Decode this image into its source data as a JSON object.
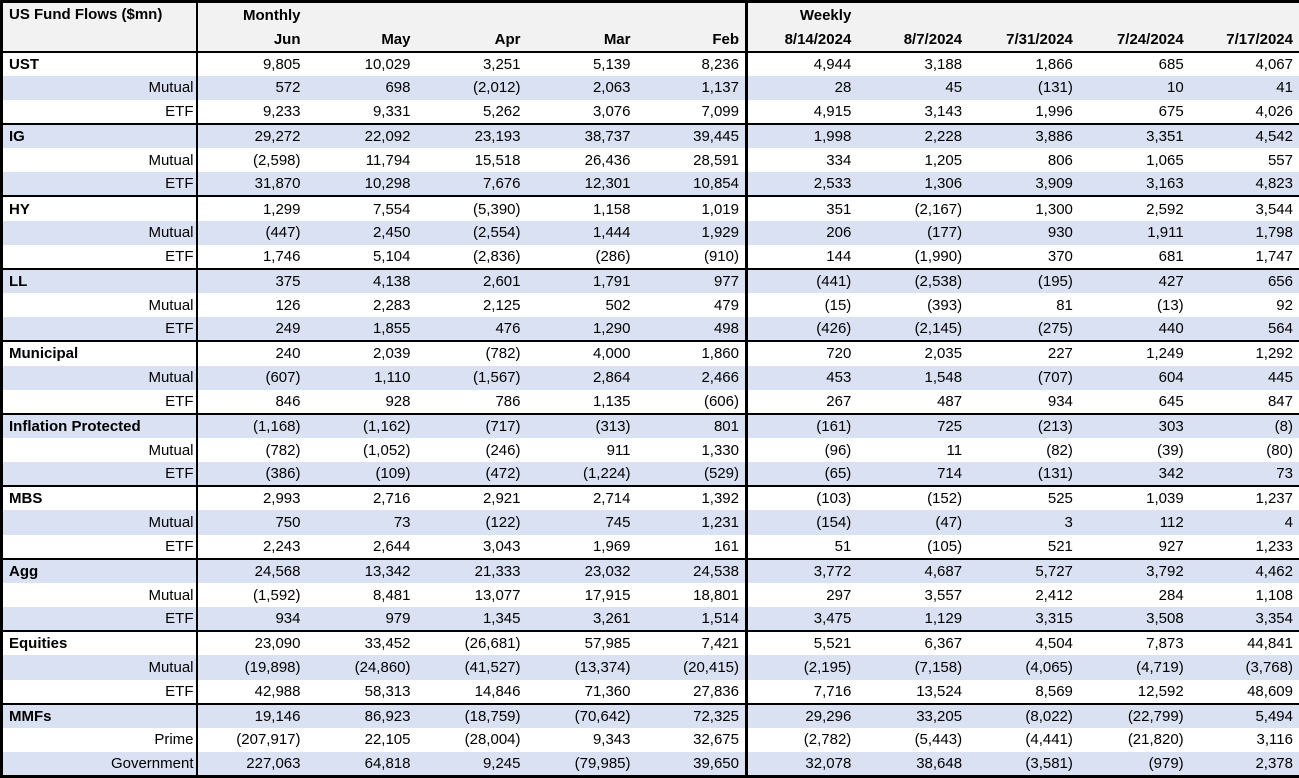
{
  "colors": {
    "stripe": "#d9e1f2",
    "header_bg": "#f2f2f2",
    "border": "#000000",
    "text": "#000000",
    "row_bg": "#ffffff"
  },
  "chart_data": {
    "type": "table",
    "title": "US Fund Flows ($mn)",
    "column_groups": [
      {
        "label": "Monthly",
        "columns": [
          "Jun",
          "May",
          "Apr",
          "Mar",
          "Feb"
        ]
      },
      {
        "label": "Weekly",
        "columns": [
          "8/14/2024",
          "8/7/2024",
          "7/31/2024",
          "7/24/2024",
          "7/17/2024"
        ]
      }
    ],
    "row_groups": [
      {
        "name": "UST",
        "rows": [
          {
            "label": "UST",
            "monthly": [
              "9,805",
              "10,029",
              "3,251",
              "5,139",
              "8,236"
            ],
            "weekly": [
              "4,944",
              "3,188",
              "1,866",
              "685",
              "4,067"
            ]
          },
          {
            "label": "Mutual",
            "monthly": [
              "572",
              "698",
              "(2,012)",
              "2,063",
              "1,137"
            ],
            "weekly": [
              "28",
              "45",
              "(131)",
              "10",
              "41"
            ]
          },
          {
            "label": "ETF",
            "monthly": [
              "9,233",
              "9,331",
              "5,262",
              "3,076",
              "7,099"
            ],
            "weekly": [
              "4,915",
              "3,143",
              "1,996",
              "675",
              "4,026"
            ]
          }
        ]
      },
      {
        "name": "IG",
        "rows": [
          {
            "label": "IG",
            "monthly": [
              "29,272",
              "22,092",
              "23,193",
              "38,737",
              "39,445"
            ],
            "weekly": [
              "1,998",
              "2,228",
              "3,886",
              "3,351",
              "4,542"
            ]
          },
          {
            "label": "Mutual",
            "monthly": [
              "(2,598)",
              "11,794",
              "15,518",
              "26,436",
              "28,591"
            ],
            "weekly": [
              "334",
              "1,205",
              "806",
              "1,065",
              "557"
            ]
          },
          {
            "label": "ETF",
            "monthly": [
              "31,870",
              "10,298",
              "7,676",
              "12,301",
              "10,854"
            ],
            "weekly": [
              "2,533",
              "1,306",
              "3,909",
              "3,163",
              "4,823"
            ]
          }
        ]
      },
      {
        "name": "HY",
        "rows": [
          {
            "label": "HY",
            "monthly": [
              "1,299",
              "7,554",
              "(5,390)",
              "1,158",
              "1,019"
            ],
            "weekly": [
              "351",
              "(2,167)",
              "1,300",
              "2,592",
              "3,544"
            ]
          },
          {
            "label": "Mutual",
            "monthly": [
              "(447)",
              "2,450",
              "(2,554)",
              "1,444",
              "1,929"
            ],
            "weekly": [
              "206",
              "(177)",
              "930",
              "1,911",
              "1,798"
            ]
          },
          {
            "label": "ETF",
            "monthly": [
              "1,746",
              "5,104",
              "(2,836)",
              "(286)",
              "(910)"
            ],
            "weekly": [
              "144",
              "(1,990)",
              "370",
              "681",
              "1,747"
            ]
          }
        ]
      },
      {
        "name": "LL",
        "rows": [
          {
            "label": "LL",
            "monthly": [
              "375",
              "4,138",
              "2,601",
              "1,791",
              "977"
            ],
            "weekly": [
              "(441)",
              "(2,538)",
              "(195)",
              "427",
              "656"
            ]
          },
          {
            "label": "Mutual",
            "monthly": [
              "126",
              "2,283",
              "2,125",
              "502",
              "479"
            ],
            "weekly": [
              "(15)",
              "(393)",
              "81",
              "(13)",
              "92"
            ]
          },
          {
            "label": "ETF",
            "monthly": [
              "249",
              "1,855",
              "476",
              "1,290",
              "498"
            ],
            "weekly": [
              "(426)",
              "(2,145)",
              "(275)",
              "440",
              "564"
            ]
          }
        ]
      },
      {
        "name": "Municipal",
        "rows": [
          {
            "label": "Municipal",
            "monthly": [
              "240",
              "2,039",
              "(782)",
              "4,000",
              "1,860"
            ],
            "weekly": [
              "720",
              "2,035",
              "227",
              "1,249",
              "1,292"
            ]
          },
          {
            "label": "Mutual",
            "monthly": [
              "(607)",
              "1,110",
              "(1,567)",
              "2,864",
              "2,466"
            ],
            "weekly": [
              "453",
              "1,548",
              "(707)",
              "604",
              "445"
            ]
          },
          {
            "label": "ETF",
            "monthly": [
              "846",
              "928",
              "786",
              "1,135",
              "(606)"
            ],
            "weekly": [
              "267",
              "487",
              "934",
              "645",
              "847"
            ]
          }
        ]
      },
      {
        "name": "Inflation Protected",
        "rows": [
          {
            "label": "Inflation Protected",
            "monthly": [
              "(1,168)",
              "(1,162)",
              "(717)",
              "(313)",
              "801"
            ],
            "weekly": [
              "(161)",
              "725",
              "(213)",
              "303",
              "(8)"
            ]
          },
          {
            "label": "Mutual",
            "monthly": [
              "(782)",
              "(1,052)",
              "(246)",
              "911",
              "1,330"
            ],
            "weekly": [
              "(96)",
              "11",
              "(82)",
              "(39)",
              "(80)"
            ]
          },
          {
            "label": "ETF",
            "monthly": [
              "(386)",
              "(109)",
              "(472)",
              "(1,224)",
              "(529)"
            ],
            "weekly": [
              "(65)",
              "714",
              "(131)",
              "342",
              "73"
            ]
          }
        ]
      },
      {
        "name": "MBS",
        "rows": [
          {
            "label": "MBS",
            "monthly": [
              "2,993",
              "2,716",
              "2,921",
              "2,714",
              "1,392"
            ],
            "weekly": [
              "(103)",
              "(152)",
              "525",
              "1,039",
              "1,237"
            ]
          },
          {
            "label": "Mutual",
            "monthly": [
              "750",
              "73",
              "(122)",
              "745",
              "1,231"
            ],
            "weekly": [
              "(154)",
              "(47)",
              "3",
              "112",
              "4"
            ]
          },
          {
            "label": "ETF",
            "monthly": [
              "2,243",
              "2,644",
              "3,043",
              "1,969",
              "161"
            ],
            "weekly": [
              "51",
              "(105)",
              "521",
              "927",
              "1,233"
            ]
          }
        ]
      },
      {
        "name": "Agg",
        "rows": [
          {
            "label": "Agg",
            "monthly": [
              "24,568",
              "13,342",
              "21,333",
              "23,032",
              "24,538"
            ],
            "weekly": [
              "3,772",
              "4,687",
              "5,727",
              "3,792",
              "4,462"
            ]
          },
          {
            "label": "Mutual",
            "monthly": [
              "(1,592)",
              "8,481",
              "13,077",
              "17,915",
              "18,801"
            ],
            "weekly": [
              "297",
              "3,557",
              "2,412",
              "284",
              "1,108"
            ]
          },
          {
            "label": "ETF",
            "monthly": [
              "934",
              "979",
              "1,345",
              "3,261",
              "1,514"
            ],
            "weekly": [
              "3,475",
              "1,129",
              "3,315",
              "3,508",
              "3,354"
            ]
          }
        ]
      },
      {
        "name": "Equities",
        "rows": [
          {
            "label": "Equities",
            "monthly": [
              "23,090",
              "33,452",
              "(26,681)",
              "57,985",
              "7,421"
            ],
            "weekly": [
              "5,521",
              "6,367",
              "4,504",
              "7,873",
              "44,841"
            ]
          },
          {
            "label": "Mutual",
            "monthly": [
              "(19,898)",
              "(24,860)",
              "(41,527)",
              "(13,374)",
              "(20,415)"
            ],
            "weekly": [
              "(2,195)",
              "(7,158)",
              "(4,065)",
              "(4,719)",
              "(3,768)"
            ]
          },
          {
            "label": "ETF",
            "monthly": [
              "42,988",
              "58,313",
              "14,846",
              "71,360",
              "27,836"
            ],
            "weekly": [
              "7,716",
              "13,524",
              "8,569",
              "12,592",
              "48,609"
            ]
          }
        ]
      },
      {
        "name": "MMFs",
        "rows": [
          {
            "label": "MMFs",
            "monthly": [
              "19,146",
              "86,923",
              "(18,759)",
              "(70,642)",
              "72,325"
            ],
            "weekly": [
              "29,296",
              "33,205",
              "(8,022)",
              "(22,799)",
              "5,494"
            ]
          },
          {
            "label": "Prime",
            "monthly": [
              "(207,917)",
              "22,105",
              "(28,004)",
              "9,343",
              "32,675"
            ],
            "weekly": [
              "(2,782)",
              "(5,443)",
              "(4,441)",
              "(21,820)",
              "3,116"
            ]
          },
          {
            "label": "Government",
            "monthly": [
              "227,063",
              "64,818",
              "9,245",
              "(79,985)",
              "39,650"
            ],
            "weekly": [
              "32,078",
              "38,648",
              "(3,581)",
              "(979)",
              "2,378"
            ]
          }
        ]
      }
    ]
  }
}
